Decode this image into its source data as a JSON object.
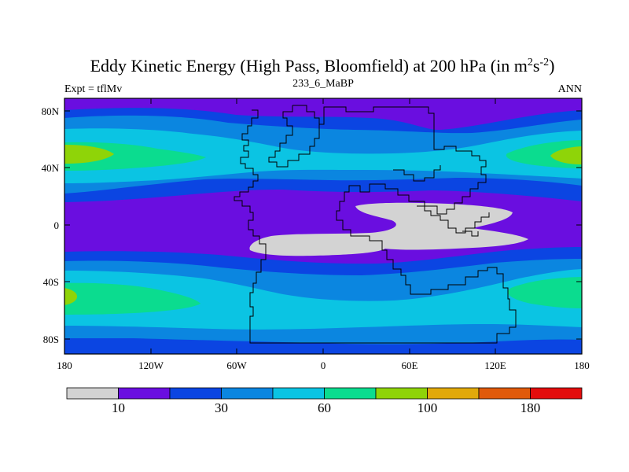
{
  "title": "Eddy Kinetic Energy (High Pass, Bloomfield) at 200 hPa (in m",
  "title_sup1": "2",
  "title_mid": "s",
  "title_sup2": "-2",
  "title_end": ")",
  "left_string": "Expt = tflMv",
  "center_string": "233_6_MaBP",
  "right_string": "ANN",
  "map": {
    "projection": "cylindrical-equidistant",
    "lon_range": [
      -180,
      180
    ],
    "lat_range": [
      -90,
      90
    ],
    "x_ticks": [
      "180",
      "120W",
      "60W",
      "0",
      "60E",
      "120E",
      "180"
    ],
    "y_ticks": [
      "80N",
      "40N",
      "0",
      "40S",
      "80S"
    ]
  },
  "colorbar": {
    "colors": [
      "#d3d3d3",
      "#6a0ee0",
      "#0b45e2",
      "#0b86e0",
      "#0bc4e3",
      "#0bdc8f",
      "#8fd408",
      "#e1a90a",
      "#e05a0b",
      "#e30d0d"
    ],
    "labels": [
      {
        "text": "10",
        "boundary": 1
      },
      {
        "text": "30",
        "boundary": 3
      },
      {
        "text": "60",
        "boundary": 5
      },
      {
        "text": "100",
        "boundary": 7
      },
      {
        "text": "180",
        "boundary": 9
      }
    ]
  }
}
